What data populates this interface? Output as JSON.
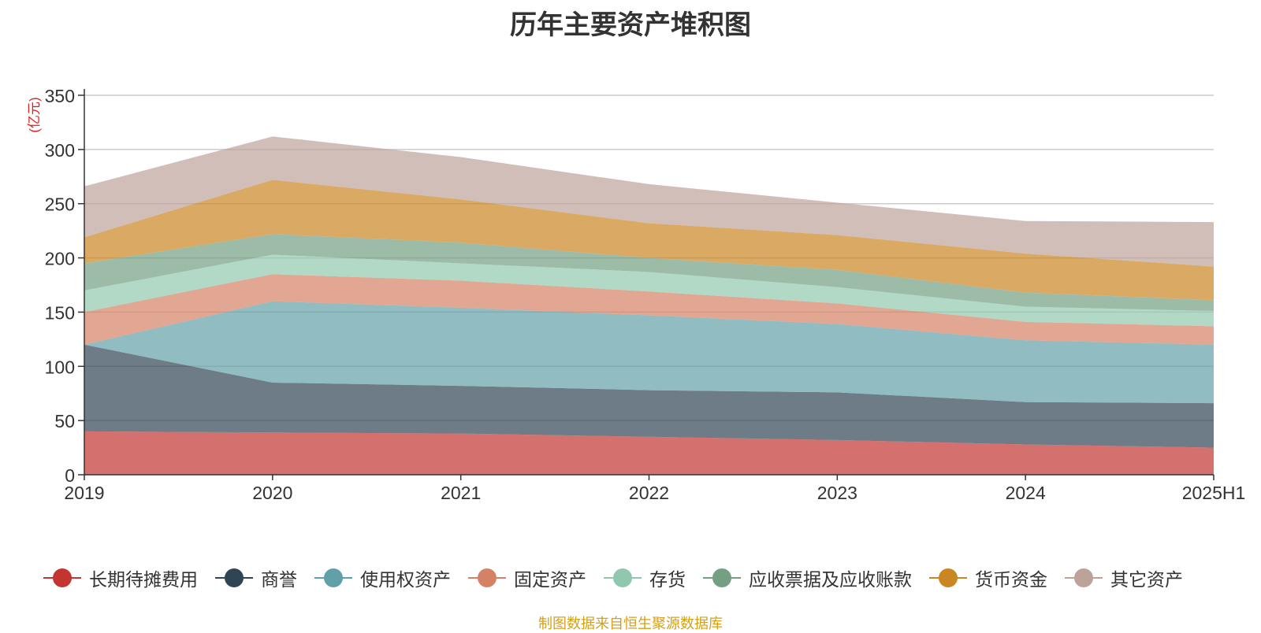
{
  "chart_data": {
    "type": "area",
    "stacked": true,
    "title": "历年主要资产堆积图",
    "ylabel": "(亿元)",
    "xlabel": "",
    "categories": [
      "2019",
      "2020",
      "2021",
      "2022",
      "2023",
      "2024",
      "2025H1"
    ],
    "ylim": [
      0,
      350
    ],
    "yticks": [
      "0",
      "50",
      "100",
      "150",
      "200",
      "250",
      "300",
      "350"
    ],
    "grid": true,
    "legend_position": "bottom",
    "series": [
      {
        "name": "长期待摊费用",
        "color": "#c23531",
        "values": [
          40,
          39,
          38,
          35,
          32,
          28,
          25
        ]
      },
      {
        "name": "商誉",
        "color": "#2f4554",
        "values": [
          80,
          46,
          44,
          43,
          44,
          39,
          41
        ]
      },
      {
        "name": "使用权资产",
        "color": "#61a0a8",
        "values": [
          0,
          75,
          72,
          69,
          63,
          57,
          54
        ]
      },
      {
        "name": "固定资产",
        "color": "#d48265",
        "values": [
          30,
          25,
          25,
          22,
          19,
          17,
          17
        ]
      },
      {
        "name": "存货",
        "color": "#91c7ae",
        "values": [
          20,
          18,
          16,
          18,
          15,
          14,
          14
        ]
      },
      {
        "name": "应收票据及应收账款",
        "color": "#749f83",
        "values": [
          25,
          19,
          19,
          13,
          16,
          13,
          10
        ]
      },
      {
        "name": "货币资金",
        "color": "#ca8622",
        "values": [
          24,
          50,
          40,
          32,
          32,
          36,
          31
        ]
      },
      {
        "name": "其它资产",
        "color": "#bda29a",
        "values": [
          47,
          40,
          39,
          36,
          30,
          30,
          41
        ]
      }
    ]
  },
  "source_note": "制图数据来自恒生聚源数据库"
}
